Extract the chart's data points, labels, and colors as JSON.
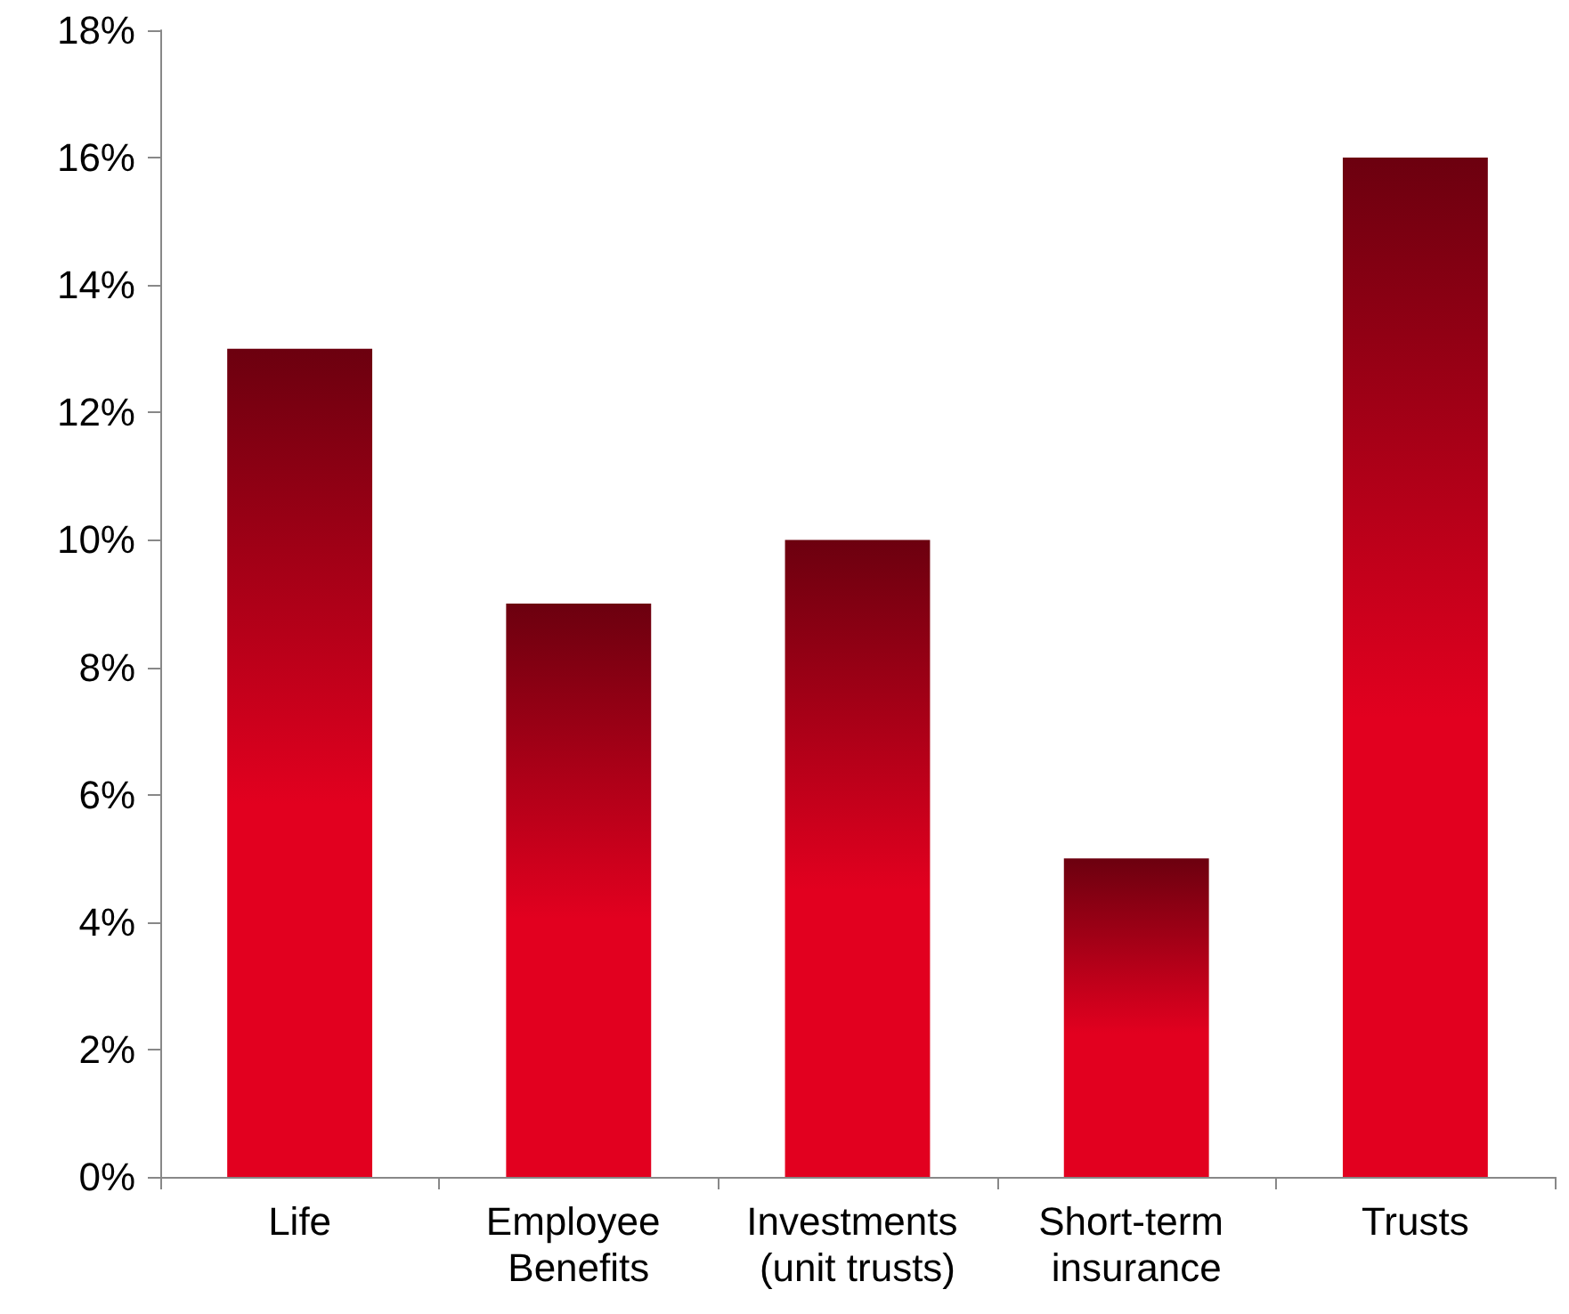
{
  "chart_data": {
    "type": "bar",
    "categories": [
      "Life",
      "Employee Benefits",
      "Investments (unit trusts)",
      "Short-term insurance",
      "Trusts"
    ],
    "values": [
      13,
      9,
      10,
      5,
      16
    ],
    "color": "#e2001f",
    "ylim": [
      0,
      18
    ],
    "yticks": [
      {
        "value": 0,
        "label": "0%"
      },
      {
        "value": 2,
        "label": "2%"
      },
      {
        "value": 4,
        "label": "4%"
      },
      {
        "value": 6,
        "label": "6%"
      },
      {
        "value": 8,
        "label": "8%"
      },
      {
        "value": 10,
        "label": "10%"
      },
      {
        "value": 12,
        "label": "12%"
      },
      {
        "value": 14,
        "label": "14%"
      },
      {
        "value": 16,
        "label": "16%"
      },
      {
        "value": 18,
        "label": "18%"
      }
    ],
    "grid": false
  }
}
